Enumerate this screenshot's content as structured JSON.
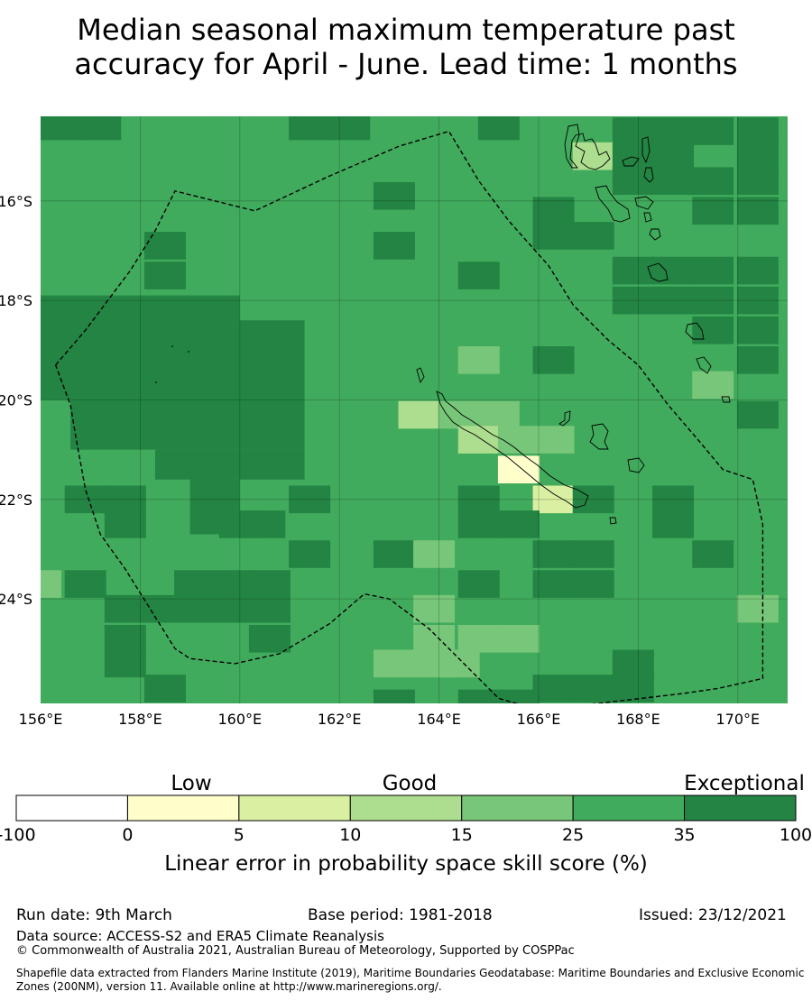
{
  "title": {
    "line1": "Median seasonal maximum temperature past",
    "line2": "accuracy for April - June. Lead time: 1 months"
  },
  "map": {
    "lat_labels": [
      "16°S",
      "18°S",
      "20°S",
      "22°S",
      "24°S"
    ],
    "lon_labels": [
      "156°E",
      "158°E",
      "160°E",
      "162°E",
      "164°E",
      "166°E",
      "168°E",
      "170°E"
    ],
    "lon_range": [
      156,
      171
    ],
    "lat_range": [
      -14.3,
      -26.1
    ],
    "grid_lats": [
      -16,
      -18,
      -20,
      -22,
      -24
    ],
    "grid_lons": [
      158,
      160,
      162,
      164,
      166,
      168,
      170
    ],
    "cell_size_deg": [
      0.833,
      0.555
    ],
    "cell_lon0": 155.5,
    "cell_lat0": -26.3,
    "palette": {
      "base": "#41ab5d",
      "dark": "#238443",
      "light": "#78c679",
      "paler": "#addd8e",
      "pale": "#d9f0a3",
      "yellow": "#ffffcc"
    },
    "cells": [
      {
        "lon": 156.4,
        "lat": -14.5,
        "cls": "dark"
      },
      {
        "lon": 157.2,
        "lat": -14.5,
        "cls": "dark"
      },
      {
        "lon": 161.4,
        "lat": -14.5,
        "cls": "dark"
      },
      {
        "lon": 162.2,
        "lat": -14.5,
        "cls": "dark"
      },
      {
        "lon": 165.2,
        "lat": -14.5,
        "cls": "dark"
      },
      {
        "lon": 167.9,
        "lat": -14.6,
        "cls": "dark"
      },
      {
        "lon": 168.7,
        "lat": -14.6,
        "cls": "dark"
      },
      {
        "lon": 169.5,
        "lat": -14.6,
        "cls": "dark"
      },
      {
        "lon": 170.4,
        "lat": -14.6,
        "cls": "dark"
      },
      {
        "lon": 167.1,
        "lat": -15.1,
        "cls": "paler"
      },
      {
        "lon": 167.9,
        "lat": -15.1,
        "cls": "dark"
      },
      {
        "lon": 168.7,
        "lat": -15.1,
        "cls": "dark"
      },
      {
        "lon": 170.4,
        "lat": -15.1,
        "cls": "dark"
      },
      {
        "lon": 163.1,
        "lat": -15.9,
        "cls": "dark"
      },
      {
        "lon": 167.9,
        "lat": -15.6,
        "cls": "dark"
      },
      {
        "lon": 168.7,
        "lat": -15.6,
        "cls": "dark"
      },
      {
        "lon": 169.5,
        "lat": -15.6,
        "cls": "dark"
      },
      {
        "lon": 170.4,
        "lat": -15.6,
        "cls": "dark"
      },
      {
        "lon": 166.3,
        "lat": -16.2,
        "cls": "dark"
      },
      {
        "lon": 169.5,
        "lat": -16.2,
        "cls": "dark"
      },
      {
        "lon": 170.4,
        "lat": -16.2,
        "cls": "dark"
      },
      {
        "lon": 163.1,
        "lat": -16.9,
        "cls": "dark"
      },
      {
        "lon": 158.5,
        "lat": -16.9,
        "cls": "dark"
      },
      {
        "lon": 166.3,
        "lat": -16.7,
        "cls": "dark"
      },
      {
        "lon": 167.1,
        "lat": -16.7,
        "cls": "dark"
      },
      {
        "lon": 158.5,
        "lat": -17.5,
        "cls": "dark"
      },
      {
        "lon": 164.8,
        "lat": -17.5,
        "cls": "dark"
      },
      {
        "lon": 167.9,
        "lat": -17.4,
        "cls": "dark"
      },
      {
        "lon": 168.7,
        "lat": -17.4,
        "cls": "dark"
      },
      {
        "lon": 169.5,
        "lat": -17.4,
        "cls": "dark"
      },
      {
        "lon": 170.4,
        "lat": -17.4,
        "cls": "dark"
      },
      {
        "lon": 167.9,
        "lat": -18.0,
        "cls": "dark"
      },
      {
        "lon": 168.7,
        "lat": -18.0,
        "cls": "dark"
      },
      {
        "lon": 169.5,
        "lat": -18.0,
        "cls": "dark"
      },
      {
        "lon": 170.4,
        "lat": -18.0,
        "cls": "dark"
      },
      {
        "lon": 169.5,
        "lat": -18.6,
        "cls": "dark"
      },
      {
        "lon": 170.4,
        "lat": -18.6,
        "cls": "dark"
      },
      {
        "lon": 164.8,
        "lat": -19.2,
        "cls": "light"
      },
      {
        "lon": 166.3,
        "lat": -19.2,
        "cls": "dark"
      },
      {
        "lon": 170.4,
        "lat": -19.2,
        "cls": "dark"
      },
      {
        "lon": 169.5,
        "lat": -19.7,
        "cls": "light"
      },
      {
        "lon": 163.6,
        "lat": -20.3,
        "cls": "paler"
      },
      {
        "lon": 164.4,
        "lat": -20.3,
        "cls": "light"
      },
      {
        "lon": 165.2,
        "lat": -20.3,
        "cls": "light"
      },
      {
        "lon": 170.4,
        "lat": -20.3,
        "cls": "dark"
      },
      {
        "lon": 164.8,
        "lat": -20.8,
        "cls": "paler"
      },
      {
        "lon": 165.6,
        "lat": -20.8,
        "cls": "light"
      },
      {
        "lon": 166.3,
        "lat": -20.8,
        "cls": "light"
      },
      {
        "lon": 165.6,
        "lat": -21.4,
        "cls": "yellow"
      },
      {
        "lon": 156.9,
        "lat": -22.0,
        "cls": "dark"
      },
      {
        "lon": 157.7,
        "lat": -22.0,
        "cls": "dark"
      },
      {
        "lon": 161.4,
        "lat": -22.0,
        "cls": "dark"
      },
      {
        "lon": 164.8,
        "lat": -22.0,
        "cls": "dark"
      },
      {
        "lon": 166.3,
        "lat": -22.0,
        "cls": "pale"
      },
      {
        "lon": 167.1,
        "lat": -22.0,
        "cls": "dark"
      },
      {
        "lon": 168.7,
        "lat": -22.0,
        "cls": "dark"
      },
      {
        "lon": 157.7,
        "lat": -22.5,
        "cls": "dark"
      },
      {
        "lon": 160.0,
        "lat": -22.5,
        "cls": "dark"
      },
      {
        "lon": 160.5,
        "lat": -22.5,
        "cls": "dark"
      },
      {
        "lon": 164.8,
        "lat": -22.5,
        "cls": "dark"
      },
      {
        "lon": 165.6,
        "lat": -22.5,
        "cls": "dark"
      },
      {
        "lon": 168.7,
        "lat": -22.5,
        "cls": "dark"
      },
      {
        "lon": 161.4,
        "lat": -23.1,
        "cls": "dark"
      },
      {
        "lon": 163.1,
        "lat": -23.1,
        "cls": "dark"
      },
      {
        "lon": 163.9,
        "lat": -23.1,
        "cls": "light"
      },
      {
        "lon": 166.3,
        "lat": -23.1,
        "cls": "dark"
      },
      {
        "lon": 167.1,
        "lat": -23.1,
        "cls": "dark"
      },
      {
        "lon": 169.5,
        "lat": -23.1,
        "cls": "dark"
      },
      {
        "lon": 156.0,
        "lat": -23.7,
        "cls": "light"
      },
      {
        "lon": 156.9,
        "lat": -23.7,
        "cls": "dark"
      },
      {
        "lon": 159.1,
        "lat": -23.7,
        "cls": "dark"
      },
      {
        "lon": 159.9,
        "lat": -23.7,
        "cls": "dark"
      },
      {
        "lon": 160.6,
        "lat": -23.7,
        "cls": "dark"
      },
      {
        "lon": 164.8,
        "lat": -23.7,
        "cls": "dark"
      },
      {
        "lon": 166.3,
        "lat": -23.7,
        "cls": "dark"
      },
      {
        "lon": 167.1,
        "lat": -23.7,
        "cls": "dark"
      },
      {
        "lon": 157.7,
        "lat": -24.2,
        "cls": "dark"
      },
      {
        "lon": 158.5,
        "lat": -24.2,
        "cls": "dark"
      },
      {
        "lon": 159.3,
        "lat": -24.2,
        "cls": "dark"
      },
      {
        "lon": 160.1,
        "lat": -24.2,
        "cls": "dark"
      },
      {
        "lon": 160.6,
        "lat": -24.2,
        "cls": "dark"
      },
      {
        "lon": 163.9,
        "lat": -24.2,
        "cls": "light"
      },
      {
        "lon": 170.4,
        "lat": -24.2,
        "cls": "light"
      },
      {
        "lon": 157.7,
        "lat": -24.8,
        "cls": "dark"
      },
      {
        "lon": 160.6,
        "lat": -24.8,
        "cls": "dark"
      },
      {
        "lon": 163.9,
        "lat": -24.8,
        "cls": "light"
      },
      {
        "lon": 164.8,
        "lat": -24.8,
        "cls": "light"
      },
      {
        "lon": 165.6,
        "lat": -24.8,
        "cls": "light"
      },
      {
        "lon": 157.7,
        "lat": -25.3,
        "cls": "dark"
      },
      {
        "lon": 163.1,
        "lat": -25.3,
        "cls": "light"
      },
      {
        "lon": 163.9,
        "lat": -25.3,
        "cls": "light"
      },
      {
        "lon": 164.4,
        "lat": -25.3,
        "cls": "light"
      },
      {
        "lon": 167.9,
        "lat": -25.3,
        "cls": "dark"
      },
      {
        "lon": 158.5,
        "lat": -25.8,
        "cls": "dark"
      },
      {
        "lon": 166.3,
        "lat": -25.8,
        "cls": "dark"
      },
      {
        "lon": 167.1,
        "lat": -25.8,
        "cls": "dark"
      },
      {
        "lon": 167.9,
        "lat": -25.8,
        "cls": "dark"
      },
      {
        "lon": 163.1,
        "lat": -26.1,
        "cls": "dark"
      },
      {
        "lon": 164.8,
        "lat": -26.1,
        "cls": "dark"
      },
      {
        "lon": 165.6,
        "lat": -26.1,
        "cls": "dark"
      }
    ],
    "dark_blocks": [
      {
        "lon1": 156.0,
        "lon2": 160.0,
        "lat1": -17.9,
        "lat2": -20.0
      },
      {
        "lon1": 156.6,
        "lon2": 161.3,
        "lat1": -20.0,
        "lat2": -21.0
      },
      {
        "lon1": 158.3,
        "lon2": 161.3,
        "lat1": -21.0,
        "lat2": -21.6
      },
      {
        "lon1": 160.0,
        "lon2": 161.3,
        "lat1": -18.4,
        "lat2": -20.0
      },
      {
        "lon1": 159.0,
        "lon2": 160.0,
        "lat1": -21.6,
        "lat2": -22.7
      }
    ],
    "eez_path_lonlat": [
      [
        156.3,
        -19.3
      ],
      [
        156.9,
        -18.6
      ],
      [
        157.8,
        -17.4
      ],
      [
        158.3,
        -16.6
      ],
      [
        158.7,
        -15.8
      ],
      [
        160.3,
        -16.2
      ],
      [
        161.8,
        -15.5
      ],
      [
        163.2,
        -14.9
      ],
      [
        164.2,
        -14.6
      ],
      [
        164.8,
        -15.6
      ],
      [
        165.4,
        -16.4
      ],
      [
        166.2,
        -17.3
      ],
      [
        166.7,
        -18.1
      ],
      [
        167.4,
        -18.8
      ],
      [
        168.0,
        -19.3
      ],
      [
        168.6,
        -20.1
      ],
      [
        169.2,
        -20.8
      ],
      [
        169.7,
        -21.4
      ],
      [
        170.3,
        -21.6
      ],
      [
        170.5,
        -22.5
      ],
      [
        170.5,
        -25.6
      ],
      [
        169.6,
        -25.8
      ],
      [
        168.9,
        -25.9
      ],
      [
        167.2,
        -26.1
      ],
      [
        165.9,
        -26.2
      ],
      [
        165.2,
        -26.0
      ],
      [
        164.5,
        -25.3
      ],
      [
        163.8,
        -24.6
      ],
      [
        163.0,
        -24.0
      ],
      [
        162.5,
        -23.9
      ],
      [
        161.8,
        -24.5
      ],
      [
        160.8,
        -25.1
      ],
      [
        159.9,
        -25.3
      ],
      [
        159.0,
        -25.2
      ],
      [
        158.7,
        -25.0
      ],
      [
        157.7,
        -23.4
      ],
      [
        157.2,
        -22.7
      ],
      [
        156.9,
        -21.8
      ],
      [
        156.7,
        -20.7
      ],
      [
        156.6,
        -20.1
      ],
      [
        156.3,
        -19.3
      ]
    ]
  },
  "legend": {
    "categories": [
      "Low",
      "Good",
      "Exceptional"
    ],
    "ticks": [
      "-100",
      "0",
      "5",
      "10",
      "15",
      "25",
      "35",
      "100"
    ],
    "colors": [
      "#ffffff",
      "#ffffcc",
      "#d9f0a3",
      "#addd8e",
      "#78c679",
      "#41ab5d",
      "#238443"
    ],
    "label": "Linear error in probability space skill score (%)"
  },
  "footer": {
    "run_date": "Run date: 9th March",
    "base_period": "Base period: 1981-2018",
    "issued": "Issued: 23/12/2021",
    "data_source": "Data source: ACCESS-S2 and ERA5 Climate Reanalysis",
    "copyright": "© Commonwealth of Australia 2021, Australian Bureau of Meteorology, Supported by COSPPac",
    "shapefile": "Shapefile data extracted from Flanders Marine Institute (2019), Maritime Boundaries Geodatabase: Maritime Boundaries and Exclusive Economic Zones (200NM), version 11. Available online at http://www.marineregions.org/."
  }
}
